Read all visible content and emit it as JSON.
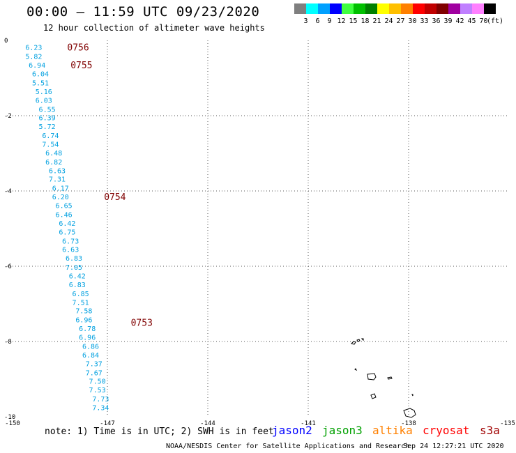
{
  "header": {
    "title": "00:00 – 11:59 UTC 09/23/2020",
    "subtitle": "12 hour collection of altimeter wave heights"
  },
  "colorbar": {
    "unit": "(ft)",
    "items": [
      {
        "label": "3",
        "color": "#7f7f7f"
      },
      {
        "label": "6",
        "color": "#00ffff"
      },
      {
        "label": "9",
        "color": "#00a0ff"
      },
      {
        "label": "12",
        "color": "#0000ff"
      },
      {
        "label": "15",
        "color": "#40ff40"
      },
      {
        "label": "18",
        "color": "#00c000"
      },
      {
        "label": "21",
        "color": "#008000"
      },
      {
        "label": "24",
        "color": "#ffff00"
      },
      {
        "label": "27",
        "color": "#ffc000"
      },
      {
        "label": "30",
        "color": "#ff8000"
      },
      {
        "label": "33",
        "color": "#ff0000"
      },
      {
        "label": "36",
        "color": "#c00000"
      },
      {
        "label": "39",
        "color": "#800000"
      },
      {
        "label": "42",
        "color": "#a000a0"
      },
      {
        "label": "45",
        "color": "#c080ff"
      },
      {
        "label": "70",
        "color": "#ff80ff"
      },
      {
        "label": "",
        "color": "#000000"
      }
    ]
  },
  "footer": {
    "note": "note: 1) Time is in UTC; 2) SWH is in feet",
    "credit": "NOAA/NESDIS Center for Satellite Applications and Research",
    "timestamp": "Sep 24 12:27:21 UTC 2020"
  },
  "legend": [
    {
      "name": "jason2",
      "color": "#0000ff"
    },
    {
      "name": "jason3",
      "color": "#00a000"
    },
    {
      "name": "altika",
      "color": "#ff8000"
    },
    {
      "name": "cryosat",
      "color": "#ff0000"
    },
    {
      "name": "s3a",
      "color": "#a00000"
    }
  ],
  "chart_data": {
    "type": "scatter",
    "xlim": [
      -150,
      -135
    ],
    "ylim": [
      -10,
      0
    ],
    "xticks": [
      "-150",
      "-147",
      "-144",
      "-141",
      "-138",
      "-135"
    ],
    "yticks": [
      "0",
      "-2",
      "-4",
      "-6",
      "-8",
      "-10"
    ],
    "grid": true,
    "point_color": "#00a0e0",
    "time_color": "#800000",
    "wave_heights": [
      {
        "lon": -149.2,
        "lat": -0.18,
        "swh": "6.23"
      },
      {
        "lon": -149.2,
        "lat": -0.42,
        "swh": "5.82"
      },
      {
        "lon": -149.1,
        "lat": -0.65,
        "swh": "6.94"
      },
      {
        "lon": -149.0,
        "lat": -0.88,
        "swh": "6.04"
      },
      {
        "lon": -149.0,
        "lat": -1.12,
        "swh": "5.51"
      },
      {
        "lon": -148.9,
        "lat": -1.35,
        "swh": "5.16"
      },
      {
        "lon": -148.9,
        "lat": -1.58,
        "swh": "6.03"
      },
      {
        "lon": -148.8,
        "lat": -1.82,
        "swh": "6.55"
      },
      {
        "lon": -148.8,
        "lat": -2.05,
        "swh": "6.39"
      },
      {
        "lon": -148.8,
        "lat": -2.28,
        "swh": "5.72"
      },
      {
        "lon": -148.7,
        "lat": -2.52,
        "swh": "6.74"
      },
      {
        "lon": -148.7,
        "lat": -2.75,
        "swh": "7.54"
      },
      {
        "lon": -148.6,
        "lat": -2.98,
        "swh": "6.48"
      },
      {
        "lon": -148.6,
        "lat": -3.22,
        "swh": "6.82"
      },
      {
        "lon": -148.5,
        "lat": -3.45,
        "swh": "6.63"
      },
      {
        "lon": -148.5,
        "lat": -3.68,
        "swh": "7.31"
      },
      {
        "lon": -148.4,
        "lat": -3.92,
        "swh": "6.17"
      },
      {
        "lon": -148.4,
        "lat": -4.15,
        "swh": "6.20"
      },
      {
        "lon": -148.3,
        "lat": -4.38,
        "swh": "6.65"
      },
      {
        "lon": -148.3,
        "lat": -4.62,
        "swh": "6.46"
      },
      {
        "lon": -148.2,
        "lat": -4.85,
        "swh": "6.42"
      },
      {
        "lon": -148.2,
        "lat": -5.08,
        "swh": "6.75"
      },
      {
        "lon": -148.1,
        "lat": -5.32,
        "swh": "6.73"
      },
      {
        "lon": -148.1,
        "lat": -5.55,
        "swh": "6.63"
      },
      {
        "lon": -148.0,
        "lat": -5.78,
        "swh": "6.83"
      },
      {
        "lon": -148.0,
        "lat": -6.02,
        "swh": "7.05"
      },
      {
        "lon": -147.9,
        "lat": -6.25,
        "swh": "6.42"
      },
      {
        "lon": -147.9,
        "lat": -6.48,
        "swh": "6.83"
      },
      {
        "lon": -147.8,
        "lat": -6.72,
        "swh": "6.85"
      },
      {
        "lon": -147.8,
        "lat": -6.95,
        "swh": "7.51"
      },
      {
        "lon": -147.7,
        "lat": -7.18,
        "swh": "7.58"
      },
      {
        "lon": -147.7,
        "lat": -7.42,
        "swh": "6.96"
      },
      {
        "lon": -147.6,
        "lat": -7.65,
        "swh": "6.78"
      },
      {
        "lon": -147.6,
        "lat": -7.88,
        "swh": "6.96"
      },
      {
        "lon": -147.5,
        "lat": -8.12,
        "swh": "6.86"
      },
      {
        "lon": -147.5,
        "lat": -8.35,
        "swh": "6.84"
      },
      {
        "lon": -147.4,
        "lat": -8.58,
        "swh": "7.37"
      },
      {
        "lon": -147.4,
        "lat": -8.82,
        "swh": "7.67"
      },
      {
        "lon": -147.3,
        "lat": -9.05,
        "swh": "7.50"
      },
      {
        "lon": -147.3,
        "lat": -9.28,
        "swh": "7.53"
      },
      {
        "lon": -147.2,
        "lat": -9.52,
        "swh": "7.73"
      },
      {
        "lon": -147.2,
        "lat": -9.75,
        "swh": "7.34"
      }
    ],
    "time_labels": [
      {
        "lon": -148.2,
        "lat": -0.18,
        "text": "0756"
      },
      {
        "lon": -148.1,
        "lat": -0.65,
        "text": "0755"
      },
      {
        "lon": -147.1,
        "lat": -4.15,
        "text": "0754"
      },
      {
        "lon": -146.3,
        "lat": -7.49,
        "text": "0753"
      }
    ]
  }
}
